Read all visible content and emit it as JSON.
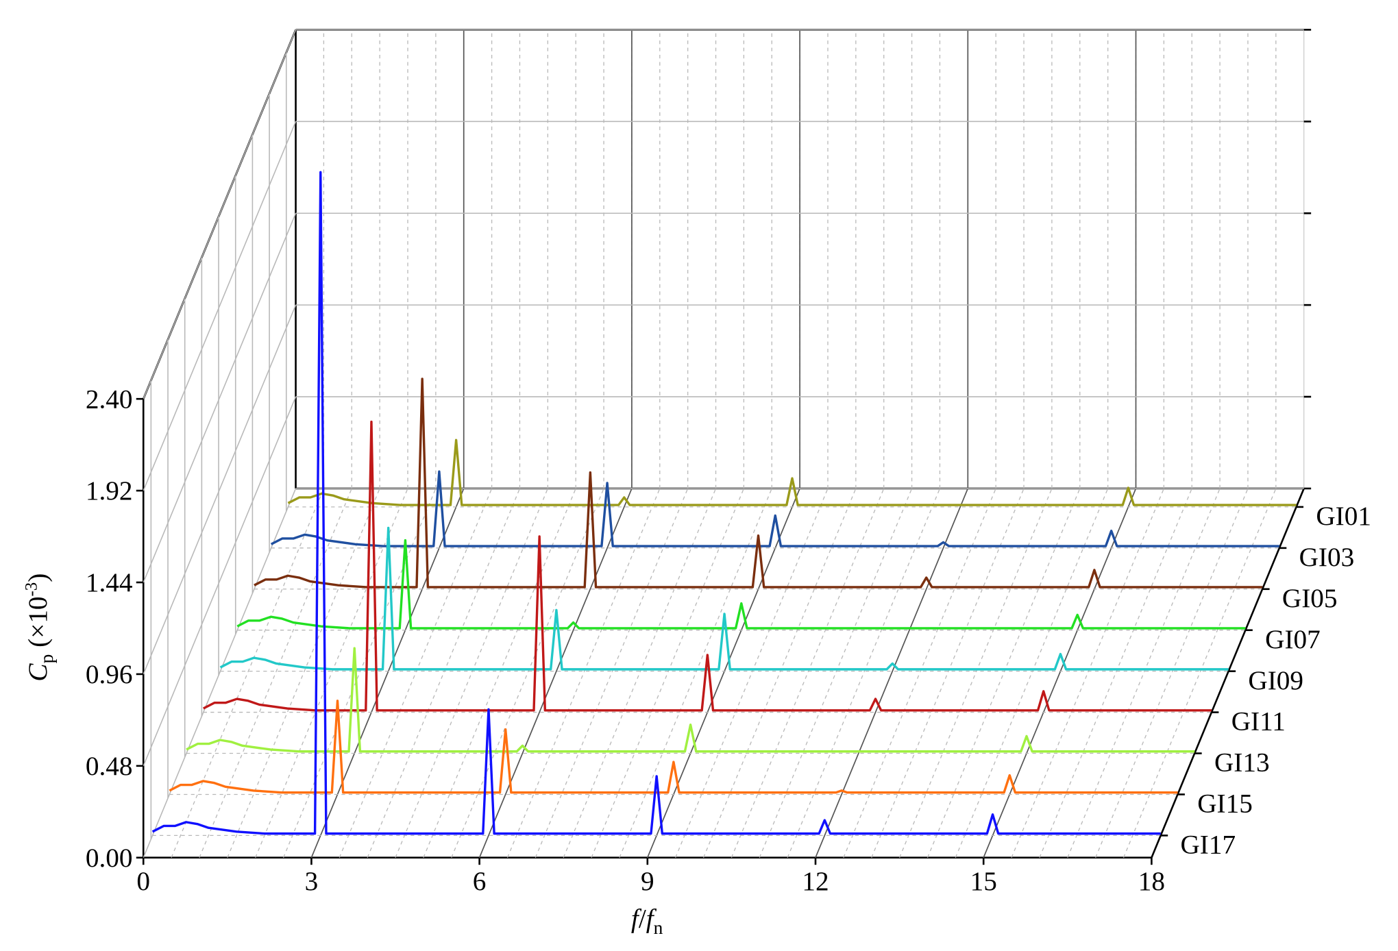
{
  "chart_data": {
    "type": "waterfall",
    "xlabel": [
      "f",
      "/",
      "f",
      "n"
    ],
    "ylabel": [
      "C",
      "p",
      " (×10",
      "-3",
      ")"
    ],
    "xlim": [
      0,
      18
    ],
    "xticks": [
      0,
      3,
      6,
      9,
      12,
      15,
      18
    ],
    "ylim": [
      0,
      2.4
    ],
    "yticks": [
      {
        "value": 0,
        "label": "0.00"
      },
      {
        "value": 0.48,
        "label": "0.48"
      },
      {
        "value": 0.96,
        "label": "0.96"
      },
      {
        "value": 1.44,
        "label": "1.44"
      },
      {
        "value": 1.92,
        "label": "1.92"
      },
      {
        "value": 2.4,
        "label": "2.40"
      }
    ],
    "grid": true,
    "series": [
      {
        "name": "GI01",
        "color": "#9a9a1a",
        "x": [
          0,
          0.2,
          0.4,
          0.6,
          0.8,
          1.0,
          1.5,
          2.0,
          2.9,
          3.0,
          3.1,
          5.9,
          6.0,
          6.1,
          8.9,
          9.0,
          9.1,
          14.9,
          15.0,
          15.1,
          18
        ],
        "values": [
          0.02,
          0.05,
          0.05,
          0.07,
          0.06,
          0.04,
          0.02,
          0.01,
          0.01,
          0.35,
          0.01,
          0.01,
          0.05,
          0.01,
          0.01,
          0.15,
          0.01,
          0.01,
          0.1,
          0.01,
          0.01
        ]
      },
      {
        "name": "GI03",
        "color": "#1f4fa0",
        "x": [
          0,
          0.2,
          0.4,
          0.6,
          0.8,
          1.0,
          1.5,
          2.0,
          2.9,
          3.0,
          3.1,
          5.9,
          6.0,
          6.1,
          8.9,
          9.0,
          9.1,
          11.9,
          12.0,
          12.1,
          14.9,
          15.0,
          15.1,
          18
        ],
        "values": [
          0.02,
          0.05,
          0.05,
          0.07,
          0.06,
          0.04,
          0.02,
          0.01,
          0.01,
          0.4,
          0.01,
          0.01,
          0.34,
          0.01,
          0.01,
          0.17,
          0.01,
          0.01,
          0.03,
          0.01,
          0.01,
          0.09,
          0.01,
          0.01
        ]
      },
      {
        "name": "GI05",
        "color": "#7a2e0e",
        "x": [
          0,
          0.2,
          0.4,
          0.6,
          0.8,
          1.0,
          1.5,
          2.0,
          2.9,
          3.0,
          3.1,
          5.9,
          6.0,
          6.1,
          8.9,
          9.0,
          9.1,
          11.9,
          12.0,
          12.1,
          14.9,
          15.0,
          15.1,
          18
        ],
        "values": [
          0.02,
          0.05,
          0.05,
          0.07,
          0.06,
          0.04,
          0.02,
          0.01,
          0.01,
          1.1,
          0.01,
          0.01,
          0.61,
          0.01,
          0.01,
          0.28,
          0.01,
          0.01,
          0.06,
          0.01,
          0.01,
          0.1,
          0.01,
          0.01
        ]
      },
      {
        "name": "GI07",
        "color": "#22e022",
        "x": [
          0,
          0.2,
          0.4,
          0.6,
          0.8,
          1.0,
          1.5,
          2.0,
          2.9,
          3.0,
          3.1,
          5.9,
          6.0,
          6.1,
          8.9,
          9.0,
          9.1,
          14.9,
          15.0,
          15.1,
          18
        ],
        "values": [
          0.02,
          0.05,
          0.05,
          0.07,
          0.06,
          0.04,
          0.02,
          0.01,
          0.01,
          0.47,
          0.01,
          0.01,
          0.04,
          0.01,
          0.01,
          0.14,
          0.01,
          0.01,
          0.08,
          0.01,
          0.01
        ]
      },
      {
        "name": "GI09",
        "color": "#22c8c8",
        "x": [
          0,
          0.2,
          0.4,
          0.6,
          0.8,
          1.0,
          1.5,
          2.0,
          2.9,
          3.0,
          3.1,
          5.9,
          6.0,
          6.1,
          8.9,
          9.0,
          9.1,
          11.9,
          12.0,
          12.1,
          14.9,
          15.0,
          15.1,
          18
        ],
        "values": [
          0.02,
          0.05,
          0.05,
          0.07,
          0.06,
          0.04,
          0.02,
          0.01,
          0.01,
          0.75,
          0.01,
          0.01,
          0.32,
          0.01,
          0.01,
          0.3,
          0.01,
          0.01,
          0.04,
          0.01,
          0.01,
          0.09,
          0.01,
          0.01
        ]
      },
      {
        "name": "GI11",
        "color": "#c01818",
        "x": [
          0,
          0.2,
          0.4,
          0.6,
          0.8,
          1.0,
          1.5,
          2.0,
          2.9,
          3.0,
          3.1,
          5.9,
          6.0,
          6.1,
          8.9,
          9.0,
          9.1,
          11.9,
          12.0,
          12.1,
          14.9,
          15.0,
          15.1,
          18
        ],
        "values": [
          0.02,
          0.05,
          0.05,
          0.07,
          0.06,
          0.04,
          0.02,
          0.01,
          0.01,
          1.52,
          0.01,
          0.01,
          0.92,
          0.01,
          0.01,
          0.3,
          0.01,
          0.01,
          0.07,
          0.01,
          0.01,
          0.11,
          0.01,
          0.01
        ]
      },
      {
        "name": "GI13",
        "color": "#a0f040",
        "x": [
          0,
          0.2,
          0.4,
          0.6,
          0.8,
          1.0,
          1.5,
          2.0,
          2.9,
          3.0,
          3.1,
          5.9,
          6.0,
          6.1,
          8.9,
          9.0,
          9.1,
          14.9,
          15.0,
          15.1,
          18
        ],
        "values": [
          0.02,
          0.05,
          0.05,
          0.07,
          0.06,
          0.04,
          0.02,
          0.01,
          0.01,
          0.55,
          0.01,
          0.01,
          0.04,
          0.01,
          0.01,
          0.15,
          0.01,
          0.01,
          0.09,
          0.01,
          0.01
        ]
      },
      {
        "name": "GI15",
        "color": "#ff7010",
        "x": [
          0,
          0.2,
          0.4,
          0.6,
          0.8,
          1.0,
          1.5,
          2.0,
          2.9,
          3.0,
          3.1,
          5.9,
          6.0,
          6.1,
          8.9,
          9.0,
          9.1,
          11.9,
          12.0,
          12.1,
          14.9,
          15.0,
          15.1,
          18
        ],
        "values": [
          0.02,
          0.05,
          0.05,
          0.07,
          0.06,
          0.04,
          0.02,
          0.01,
          0.01,
          0.49,
          0.01,
          0.01,
          0.34,
          0.01,
          0.01,
          0.17,
          0.01,
          0.01,
          0.02,
          0.01,
          0.01,
          0.1,
          0.01,
          0.01
        ]
      },
      {
        "name": "GI17",
        "color": "#1010ff",
        "x": [
          0,
          0.2,
          0.4,
          0.6,
          0.8,
          1.0,
          1.5,
          2.0,
          2.9,
          3.0,
          3.1,
          5.9,
          6.0,
          6.1,
          8.9,
          9.0,
          9.1,
          11.9,
          12.0,
          12.1,
          14.9,
          15.0,
          15.1,
          18
        ],
        "values": [
          0.02,
          0.05,
          0.05,
          0.07,
          0.06,
          0.04,
          0.02,
          0.01,
          0.01,
          3.47,
          0.01,
          0.01,
          0.66,
          0.01,
          0.01,
          0.31,
          0.01,
          0.01,
          0.08,
          0.01,
          0.01,
          0.11,
          0.01,
          0.01
        ]
      }
    ]
  }
}
